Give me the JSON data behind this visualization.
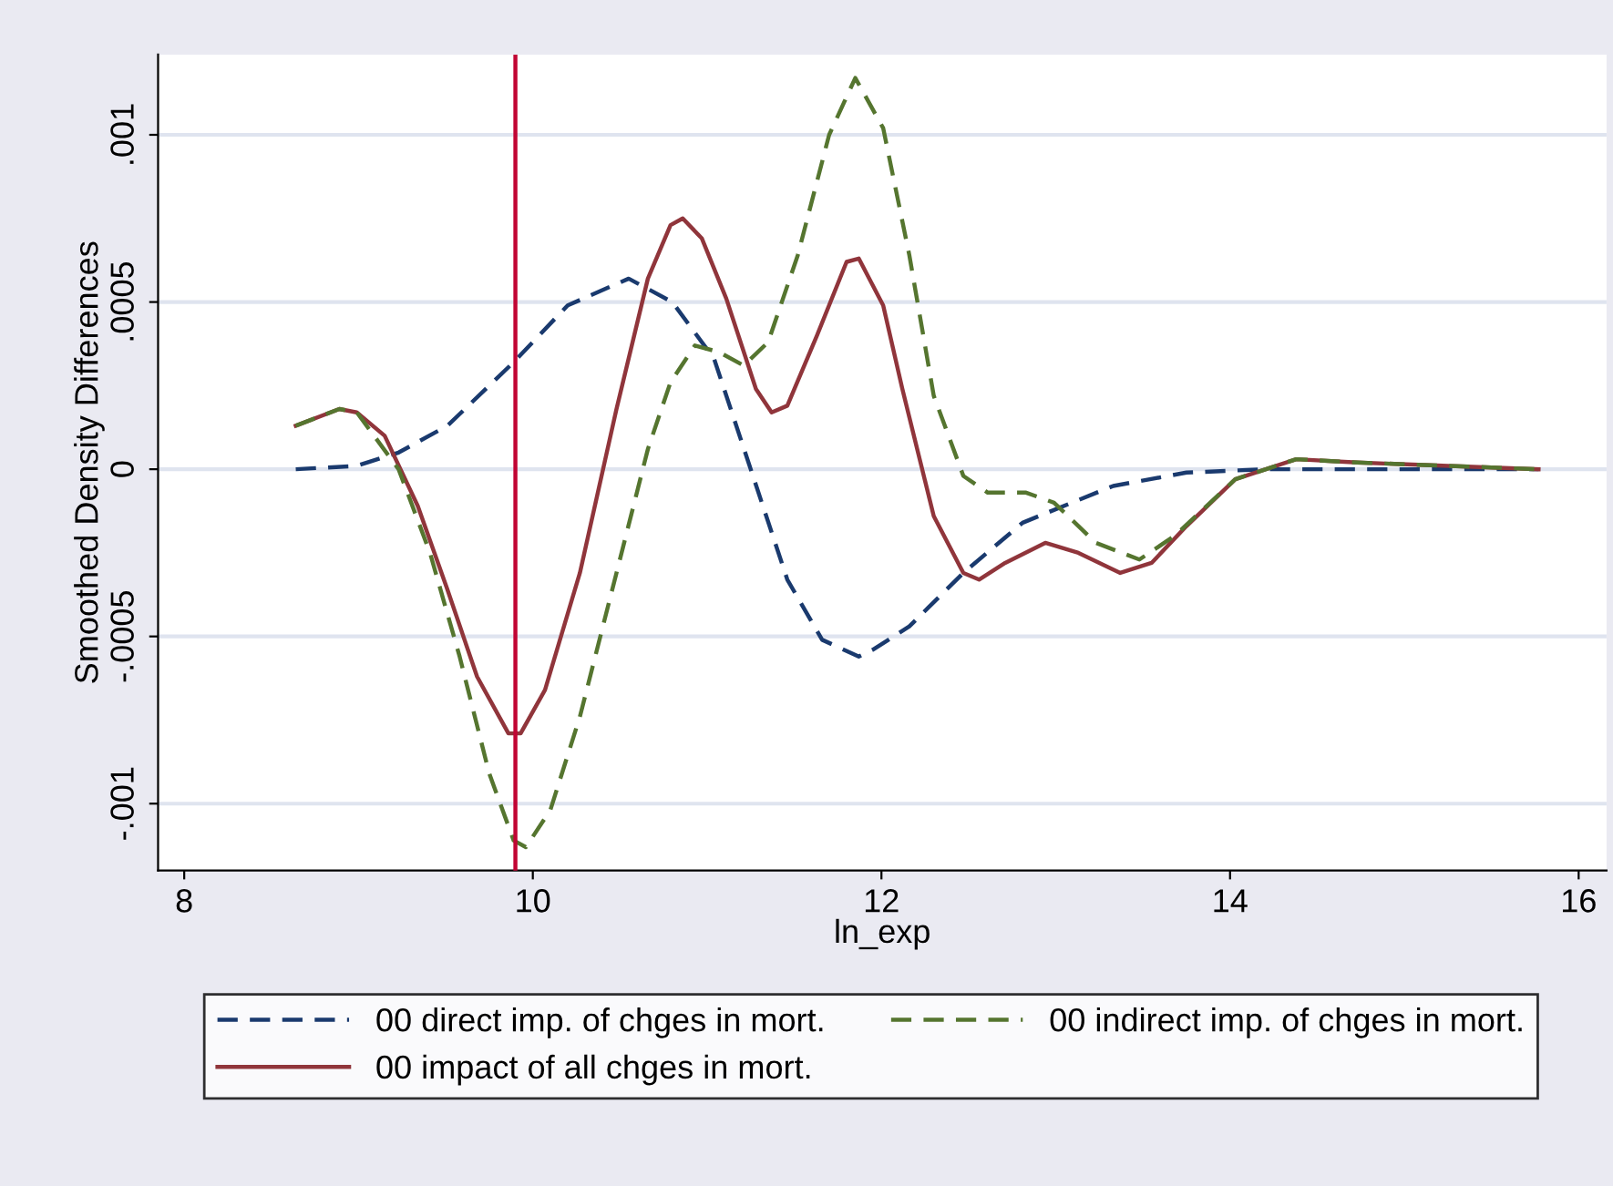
{
  "chart_data": {
    "type": "line",
    "xlabel": "ln_exp",
    "ylabel": "Smoothed Density Differences",
    "xlim": [
      7.85,
      16.16
    ],
    "xticks": [
      8,
      10,
      12,
      14,
      16
    ],
    "ylim": [
      -0.0012,
      0.00124
    ],
    "yticks": [
      {
        "value": -0.001,
        "label": "-.001"
      },
      {
        "value": -0.0005,
        "label": "-.0005"
      },
      {
        "value": 0,
        "label": "0"
      },
      {
        "value": 0.0005,
        "label": ".0005"
      },
      {
        "value": 0.001,
        "label": ".001"
      }
    ],
    "grid": "y",
    "legend": "bottom",
    "marker": "none",
    "ref_lines": [
      {
        "axis": "x",
        "value": 9.9,
        "color": "#c10534",
        "line_style": "solid"
      }
    ],
    "series": [
      {
        "name": "00 direct imp. of chges in mort.",
        "color": "#1a3a6e",
        "line_style": "dashed",
        "x": [
          8.64,
          8.99,
          9.23,
          9.51,
          9.89,
          10.2,
          10.55,
          10.8,
          11.04,
          11.25,
          11.46,
          11.66,
          11.87,
          11.95,
          12.16,
          12.47,
          12.81,
          13.33,
          13.75,
          14.2,
          15.77
        ],
        "values": [
          0,
          1e-05,
          5e-05,
          0.00013,
          0.00032,
          0.00049,
          0.00057,
          0.0005,
          0.00033,
          0,
          -0.00033,
          -0.00051,
          -0.00056,
          -0.00054,
          -0.00047,
          -0.00031,
          -0.00016,
          -5e-05,
          -1e-05,
          0,
          0
        ]
      },
      {
        "name": "00 impact of all chges in mort.",
        "color": "#90353b",
        "line_style": "solid",
        "x": [
          8.64,
          8.89,
          8.99,
          9.15,
          9.34,
          9.51,
          9.68,
          9.86,
          9.93,
          10.07,
          10.27,
          10.48,
          10.66,
          10.79,
          10.86,
          10.97,
          11.11,
          11.28,
          11.37,
          11.46,
          11.63,
          11.8,
          11.87,
          12.01,
          12.12,
          12.3,
          12.47,
          12.56,
          12.71,
          12.94,
          13.13,
          13.37,
          13.55,
          13.75,
          14.03,
          14.38,
          14.73,
          15.77
        ],
        "values": [
          0.00013,
          0.00018,
          0.00017,
          0.0001,
          -0.00011,
          -0.00036,
          -0.00062,
          -0.00079,
          -0.00079,
          -0.00066,
          -0.00031,
          0.00018,
          0.00057,
          0.00073,
          0.00075,
          0.00069,
          0.00051,
          0.00024,
          0.00017,
          0.00019,
          0.0004,
          0.00062,
          0.00063,
          0.00049,
          0.00024,
          -0.00014,
          -0.00031,
          -0.00033,
          -0.00028,
          -0.00022,
          -0.00025,
          -0.00031,
          -0.00028,
          -0.00017,
          -3e-05,
          3e-05,
          2e-05,
          0
        ]
      },
      {
        "name": "00 indirect imp. of chges in mort.",
        "color": "#55752f",
        "line_style": "dashed",
        "x": [
          8.64,
          8.89,
          8.99,
          9.23,
          9.41,
          9.58,
          9.75,
          9.89,
          9.96,
          10.1,
          10.27,
          10.48,
          10.66,
          10.79,
          10.93,
          11.07,
          11.21,
          11.35,
          11.52,
          11.7,
          11.85,
          12.01,
          12.16,
          12.3,
          12.47,
          12.61,
          12.83,
          12.99,
          13.23,
          13.48,
          13.68,
          14.03,
          14.38,
          14.73,
          15.77
        ],
        "values": [
          0.00013,
          0.00018,
          0.00017,
          0,
          -0.00025,
          -0.00056,
          -0.00091,
          -0.00111,
          -0.00113,
          -0.00102,
          -0.00074,
          -0.00031,
          6e-05,
          0.00026,
          0.00037,
          0.00035,
          0.00031,
          0.00038,
          0.00064,
          0.001,
          0.00117,
          0.00102,
          0.00064,
          0.00022,
          -2e-05,
          -7e-05,
          -7e-05,
          -0.0001,
          -0.00022,
          -0.00027,
          -0.0002,
          -3e-05,
          3e-05,
          2e-05,
          0
        ]
      }
    ]
  }
}
